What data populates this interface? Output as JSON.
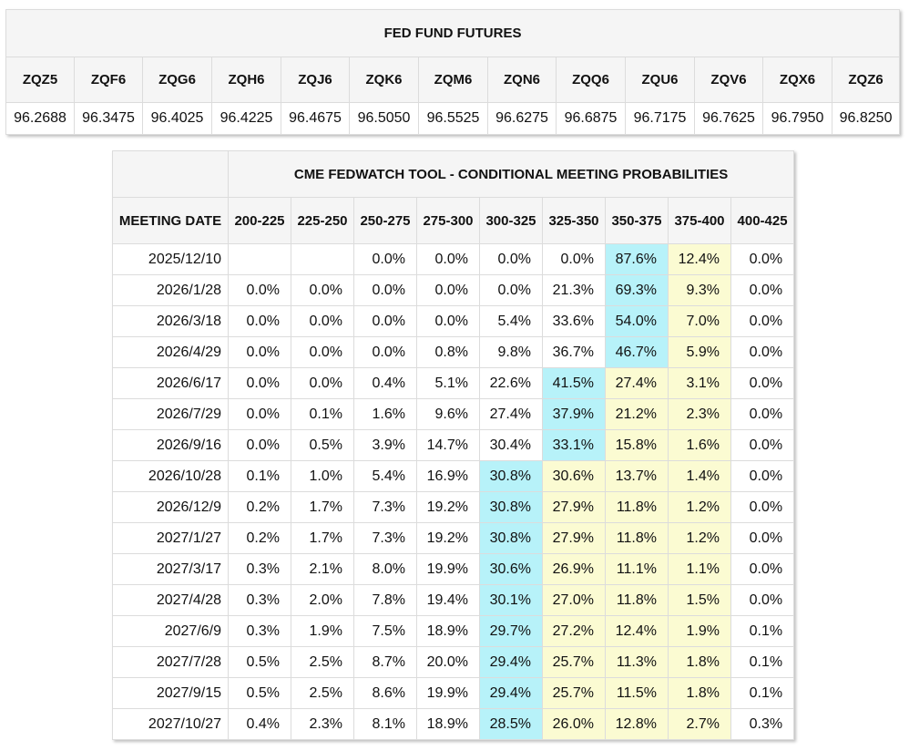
{
  "futures": {
    "title": "FED FUND FUTURES",
    "contracts": [
      {
        "symbol": "ZQZ5",
        "price": "96.2688"
      },
      {
        "symbol": "ZQF6",
        "price": "96.3475"
      },
      {
        "symbol": "ZQG6",
        "price": "96.4025"
      },
      {
        "symbol": "ZQH6",
        "price": "96.4225"
      },
      {
        "symbol": "ZQJ6",
        "price": "96.4675"
      },
      {
        "symbol": "ZQK6",
        "price": "96.5050"
      },
      {
        "symbol": "ZQM6",
        "price": "96.5525"
      },
      {
        "symbol": "ZQN6",
        "price": "96.6275"
      },
      {
        "symbol": "ZQQ6",
        "price": "96.6875"
      },
      {
        "symbol": "ZQU6",
        "price": "96.7175"
      },
      {
        "symbol": "ZQV6",
        "price": "96.7625"
      },
      {
        "symbol": "ZQX6",
        "price": "96.7950"
      },
      {
        "symbol": "ZQZ6",
        "price": "96.8250"
      }
    ]
  },
  "probabilities": {
    "title": "CME FEDWATCH TOOL - CONDITIONAL MEETING PROBABILITIES",
    "date_header": "MEETING DATE",
    "ranges": [
      "200-225",
      "225-250",
      "250-275",
      "275-300",
      "300-325",
      "325-350",
      "350-375",
      "375-400",
      "400-425"
    ],
    "colors": {
      "blue": "#b7f2f9",
      "yellow": "#fbfbd2"
    },
    "rows": [
      {
        "date": "2025/12/10",
        "values": [
          "",
          "",
          "0.0%",
          "0.0%",
          "0.0%",
          "0.0%",
          "87.6%",
          "12.4%",
          "0.0%"
        ],
        "blue": 6,
        "yellow": [
          7
        ]
      },
      {
        "date": "2026/1/28",
        "values": [
          "0.0%",
          "0.0%",
          "0.0%",
          "0.0%",
          "0.0%",
          "21.3%",
          "69.3%",
          "9.3%",
          "0.0%"
        ],
        "blue": 6,
        "yellow": [
          7
        ]
      },
      {
        "date": "2026/3/18",
        "values": [
          "0.0%",
          "0.0%",
          "0.0%",
          "0.0%",
          "5.4%",
          "33.6%",
          "54.0%",
          "7.0%",
          "0.0%"
        ],
        "blue": 6,
        "yellow": [
          7
        ]
      },
      {
        "date": "2026/4/29",
        "values": [
          "0.0%",
          "0.0%",
          "0.0%",
          "0.8%",
          "9.8%",
          "36.7%",
          "46.7%",
          "5.9%",
          "0.0%"
        ],
        "blue": 6,
        "yellow": [
          7
        ]
      },
      {
        "date": "2026/6/17",
        "values": [
          "0.0%",
          "0.0%",
          "0.4%",
          "5.1%",
          "22.6%",
          "41.5%",
          "27.4%",
          "3.1%",
          "0.0%"
        ],
        "blue": 5,
        "yellow": [
          6,
          7
        ]
      },
      {
        "date": "2026/7/29",
        "values": [
          "0.0%",
          "0.1%",
          "1.6%",
          "9.6%",
          "27.4%",
          "37.9%",
          "21.2%",
          "2.3%",
          "0.0%"
        ],
        "blue": 5,
        "yellow": [
          6,
          7
        ]
      },
      {
        "date": "2026/9/16",
        "values": [
          "0.0%",
          "0.5%",
          "3.9%",
          "14.7%",
          "30.4%",
          "33.1%",
          "15.8%",
          "1.6%",
          "0.0%"
        ],
        "blue": 5,
        "yellow": [
          6,
          7
        ]
      },
      {
        "date": "2026/10/28",
        "values": [
          "0.1%",
          "1.0%",
          "5.4%",
          "16.9%",
          "30.8%",
          "30.6%",
          "13.7%",
          "1.4%",
          "0.0%"
        ],
        "blue": 4,
        "yellow": [
          5,
          6,
          7
        ]
      },
      {
        "date": "2026/12/9",
        "values": [
          "0.2%",
          "1.7%",
          "7.3%",
          "19.2%",
          "30.8%",
          "27.9%",
          "11.8%",
          "1.2%",
          "0.0%"
        ],
        "blue": 4,
        "yellow": [
          5,
          6,
          7
        ]
      },
      {
        "date": "2027/1/27",
        "values": [
          "0.2%",
          "1.7%",
          "7.3%",
          "19.2%",
          "30.8%",
          "27.9%",
          "11.8%",
          "1.2%",
          "0.0%"
        ],
        "blue": 4,
        "yellow": [
          5,
          6,
          7
        ]
      },
      {
        "date": "2027/3/17",
        "values": [
          "0.3%",
          "2.1%",
          "8.0%",
          "19.9%",
          "30.6%",
          "26.9%",
          "11.1%",
          "1.1%",
          "0.0%"
        ],
        "blue": 4,
        "yellow": [
          5,
          6,
          7
        ]
      },
      {
        "date": "2027/4/28",
        "values": [
          "0.3%",
          "2.0%",
          "7.8%",
          "19.4%",
          "30.1%",
          "27.0%",
          "11.8%",
          "1.5%",
          "0.0%"
        ],
        "blue": 4,
        "yellow": [
          5,
          6,
          7
        ]
      },
      {
        "date": "2027/6/9",
        "values": [
          "0.3%",
          "1.9%",
          "7.5%",
          "18.9%",
          "29.7%",
          "27.2%",
          "12.4%",
          "1.9%",
          "0.1%"
        ],
        "blue": 4,
        "yellow": [
          5,
          6,
          7
        ]
      },
      {
        "date": "2027/7/28",
        "values": [
          "0.5%",
          "2.5%",
          "8.7%",
          "20.0%",
          "29.4%",
          "25.7%",
          "11.3%",
          "1.8%",
          "0.1%"
        ],
        "blue": 4,
        "yellow": [
          5,
          6,
          7
        ]
      },
      {
        "date": "2027/9/15",
        "values": [
          "0.5%",
          "2.5%",
          "8.6%",
          "19.9%",
          "29.4%",
          "25.7%",
          "11.5%",
          "1.8%",
          "0.1%"
        ],
        "blue": 4,
        "yellow": [
          5,
          6,
          7
        ]
      },
      {
        "date": "2027/10/27",
        "values": [
          "0.4%",
          "2.3%",
          "8.1%",
          "18.9%",
          "28.5%",
          "26.0%",
          "12.8%",
          "2.7%",
          "0.3%"
        ],
        "blue": 4,
        "yellow": [
          5,
          6,
          7
        ]
      }
    ]
  }
}
